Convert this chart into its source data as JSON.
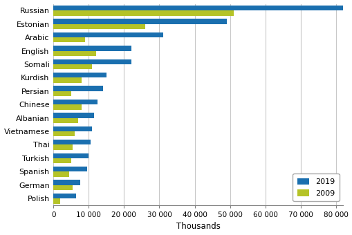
{
  "languages": [
    "Russian",
    "Estonian",
    "Arabic",
    "English",
    "Somali",
    "Kurdish",
    "Persian",
    "Chinese",
    "Albanian",
    "Vietnamese",
    "Thai",
    "Turkish",
    "Spanish",
    "German",
    "Polish"
  ],
  "values_2019": [
    82000,
    49000,
    31000,
    22000,
    22000,
    15000,
    14000,
    12500,
    11500,
    11000,
    10500,
    10000,
    9500,
    7500,
    6500
  ],
  "values_2009": [
    51000,
    26000,
    9000,
    12000,
    11000,
    8000,
    5000,
    8000,
    7000,
    6000,
    5500,
    5000,
    4500,
    5500,
    2000
  ],
  "color_2019": "#1a6faf",
  "color_2009": "#b5c327",
  "xlabel": "Thousands",
  "legend_2019": "2019",
  "legend_2009": "2009",
  "xlim": [
    0,
    82000
  ],
  "xticks": [
    0,
    10000,
    20000,
    30000,
    40000,
    50000,
    60000,
    70000,
    80000
  ],
  "xtick_labels": [
    "0",
    "10 000",
    "20 000",
    "30 000",
    "40 000",
    "50 000",
    "60 000",
    "70 000",
    "80 000"
  ],
  "background_color": "#ffffff",
  "grid_color": "#c8c8c8"
}
